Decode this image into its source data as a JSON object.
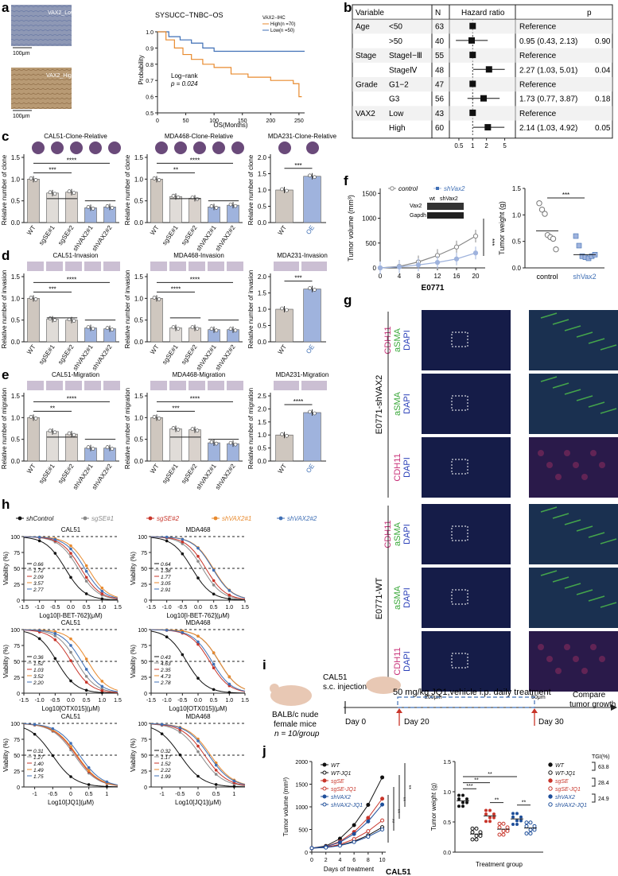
{
  "panel_letters": {
    "a": "a",
    "b": "b",
    "c": "c",
    "d": "d",
    "e": "e",
    "f": "f",
    "g": "g",
    "h": "h",
    "i": "i",
    "j": "j"
  },
  "colors": {
    "blue": "#3f6fb5",
    "orange": "#e88a2e",
    "gray": "#b8b0a8",
    "lightblue": "#9fb3dd",
    "purple": "#7a4f8a",
    "black": "#111111",
    "red": "#c8352a",
    "ihc_low": "#8e98b5",
    "ihc_high": "#b89a74",
    "dark_tissue": "#151c48"
  },
  "a": {
    "ihc_low_label": "VAX2_Low",
    "ihc_high_label": "VAX2_High",
    "scale": "100μm",
    "title": "SYSUCC−TNBC−OS",
    "ylabel": "Probability",
    "xlabel": "OS(Months)",
    "legend_title": "VAX2−IHC",
    "legend_high": "High(n =70)",
    "legend_low": "Low(n =50)",
    "logrank": "Log−rank",
    "pvalue": "p = 0.024",
    "yticks": [
      "0.5",
      "0.6",
      "0.7",
      "0.8",
      "0.9",
      "1.0"
    ],
    "xticks": [
      "0",
      "50",
      "100",
      "150",
      "200",
      "250"
    ]
  },
  "b": {
    "headers": {
      "variable": "Variable",
      "n": "N",
      "hr": "Hazard ratio",
      "p": "p"
    },
    "rows": [
      {
        "variable": "Age",
        "level": "<50",
        "n": "63",
        "text": "Reference",
        "p": ""
      },
      {
        "variable": "",
        "level": ">50",
        "n": "40",
        "text": "0.95 (0.43, 2.13)",
        "p": "0.90"
      },
      {
        "variable": "Stage",
        "level": "StageⅠ−Ⅲ",
        "n": "55",
        "text": "Reference",
        "p": ""
      },
      {
        "variable": "",
        "level": "StageⅣ",
        "n": "48",
        "text": "2.27 (1.03, 5.01)",
        "p": "0.04"
      },
      {
        "variable": "Grade",
        "level": "G1−2",
        "n": "47",
        "text": "Reference",
        "p": ""
      },
      {
        "variable": "",
        "level": "G3",
        "n": "56",
        "text": "1.73 (0.77, 3.87)",
        "p": "0.18"
      },
      {
        "variable": "VAX2",
        "level": "Low",
        "n": "43",
        "text": "Reference",
        "p": ""
      },
      {
        "variable": "",
        "level": "High",
        "n": "60",
        "text": "2.14 (1.03, 4.92)",
        "p": "0.05"
      }
    ],
    "xticks": [
      "0.5",
      "1",
      "2",
      "5"
    ]
  },
  "bars": {
    "cats5": [
      "WT",
      "sgSE#1",
      "sgSE#2",
      "shVAX2#1",
      "shVAX2#2"
    ],
    "cats2": [
      "WT",
      "OE"
    ],
    "c": {
      "ylabel": "Relative number of clone",
      "titles": [
        "CAL51-Clone-Relative",
        "MDA468-Clone-Relative",
        "MDA231-Clone-Relative"
      ],
      "v1": [
        1.0,
        0.68,
        0.7,
        0.34,
        0.36
      ],
      "v2": [
        1.0,
        0.6,
        0.56,
        0.36,
        0.4
      ],
      "v3": [
        1.0,
        1.42
      ],
      "sig1": [
        "***",
        "****"
      ],
      "sig2": [
        "**",
        "****"
      ],
      "sig3": [
        "***"
      ]
    },
    "d": {
      "ylabel": "Relative number of invasion",
      "titles": [
        "CAL51-Invasion",
        "MDA468-Invasion",
        "MDA231-Invasion"
      ],
      "v1": [
        1.0,
        0.52,
        0.5,
        0.32,
        0.3
      ],
      "v2": [
        1.0,
        0.32,
        0.32,
        0.28,
        0.28
      ],
      "v3": [
        1.0,
        1.62
      ],
      "sig1": [
        "***",
        "****"
      ],
      "sig2": [
        "****",
        "****"
      ],
      "sig3": [
        "***"
      ]
    },
    "e": {
      "ylabel": "Relative number of migration",
      "titles": [
        "CAL51-Migration",
        "MDA468-Migration",
        "MDA231-Migration"
      ],
      "v1": [
        1.0,
        0.68,
        0.62,
        0.3,
        0.3
      ],
      "v2": [
        1.0,
        0.74,
        0.72,
        0.42,
        0.4
      ],
      "v3": [
        1.0,
        1.86
      ],
      "sig1": [
        "**",
        "****"
      ],
      "sig2": [
        "***",
        "****"
      ],
      "sig3": [
        "****"
      ]
    }
  },
  "f": {
    "legend_control": "control",
    "legend_shvax2": "shVax2",
    "wb_wt": "wt",
    "wb_sh": "shVax2",
    "wb_vax2": "Vax2",
    "wb_gapdh": "Gapdh",
    "ylabel": "Tumor volume (mm³)",
    "xlabel": "E0771",
    "xticks": [
      "0",
      "4",
      "8",
      "12",
      "16",
      "20"
    ],
    "yticks": [
      "0",
      "500",
      "1000",
      "1500"
    ],
    "sig": "***",
    "ylabel2": "Tumor weight (g)",
    "yticks2": [
      "0.0",
      "0.5",
      "1.0",
      "1.5"
    ],
    "cats": [
      "control",
      "shVax2"
    ],
    "sig2": "***",
    "control_vol": [
      0,
      30,
      120,
      250,
      420,
      640,
      960
    ],
    "sh_vol": [
      0,
      20,
      60,
      110,
      180,
      300,
      500
    ],
    "control_w": [
      1.22,
      1.1,
      1.02,
      0.62,
      0.58,
      0.55,
      0.35
    ],
    "sh_w": [
      0.6,
      0.42,
      0.22,
      0.2,
      0.18,
      0.22,
      0.25
    ]
  },
  "g": {
    "group1": "E0771-shVAX2",
    "group2": "E0771-WT",
    "rows": [
      {
        "l1": "CDH11",
        "l2": "aSMA",
        "l3": "DAPI"
      },
      {
        "l1": "aSMA",
        "l2": "DAPI",
        "l3": ""
      },
      {
        "l1": "CDH11",
        "l2": "DAPI",
        "l3": ""
      },
      {
        "l1": "CDH11",
        "l2": "aSMA",
        "l3": "DAPI"
      },
      {
        "l1": "aSMA",
        "l2": "DAPI",
        "l3": ""
      },
      {
        "l1": "CDH11",
        "l2": "DAPI",
        "l3": ""
      }
    ],
    "scale1": "200μm",
    "scale2": "50μm"
  },
  "h": {
    "legend": [
      "shControl",
      "sgSE#1",
      "sgSE#2",
      "shVAX2#1",
      "shVAX2#2"
    ],
    "ylabel": "Viability (%)",
    "yticks": [
      "0",
      "25",
      "50",
      "75",
      "100"
    ],
    "xticks": [
      "-1.5",
      "-1.0",
      "-0.5",
      "0.0",
      "0.5",
      "1.0",
      "1.5"
    ],
    "xticks3": [
      "-1",
      "-0.5",
      "0",
      "0.5",
      "1"
    ],
    "plots": [
      {
        "title": "CAL51",
        "xlabel": "Log10[I-BET-762](μM)",
        "ic50": [
          "0.66",
          "1.72",
          "2.09",
          "3.57",
          "2.77"
        ]
      },
      {
        "title": "MDA468",
        "xlabel": "Log10[I-BET-762](μM)",
        "ic50": [
          "0.64",
          "1.38",
          "1.77",
          "3.05",
          "2.91"
        ]
      },
      {
        "title": "CAL51",
        "xlabel": "Log10[OTX015](μM)",
        "ic50": [
          "0.36",
          "1.52",
          "1.03",
          "3.52",
          "2.20"
        ]
      },
      {
        "title": "MDA468",
        "xlabel": "Log10[OTX015](μM)",
        "ic50": [
          "0.43",
          "4.63",
          "2.35",
          "4.73",
          "2.78"
        ]
      },
      {
        "title": "CAL51",
        "xlabel": "Log10[JQ1](μM)",
        "ic50": [
          "0.31",
          "1.27",
          "1.40",
          "1.49",
          "1.75"
        ]
      },
      {
        "title": "MDA468",
        "xlabel": "Log10[JQ1](μM)",
        "ic50": [
          "0.32",
          "1.17",
          "1.52",
          "2.22",
          "1.99"
        ]
      }
    ]
  },
  "i": {
    "mouse": "BALB/c nude",
    "mouse2": "female mice",
    "n": "n = 10/group",
    "cell": "CAL51",
    "inj": "s.c. injection",
    "treat": "50 mg/kg JQ1,vehicle i.p. daily treatment",
    "day0": "Day 0",
    "day20": "Day 20",
    "day30": "Day 30",
    "compare1": "Compare",
    "compare2": "tumor growth"
  },
  "j": {
    "legend": [
      "WT",
      "WT-JQ1",
      "sgSE",
      "sgSE-JQ1",
      "shVAX2",
      "shVAX2-JQ1"
    ],
    "ylabel": "Tumor volume (mm³)",
    "xlabel": "Days of treatment",
    "cell": "CAL51",
    "xticks": [
      "0",
      "2",
      "4",
      "6",
      "8",
      "10"
    ],
    "yticks": [
      "0",
      "500",
      "1000",
      "1500",
      "2000"
    ],
    "ylabel2": "Tumor weight (g)",
    "xlabel2": "Treatment group",
    "yticks2": [
      "0.0",
      "0.5",
      "1.0",
      "1.5"
    ],
    "tgi_title": "TGI(%)",
    "tgi": [
      "63.8",
      "28.4",
      "24.9"
    ],
    "sig_vol": [
      "**",
      "**",
      "**",
      "**"
    ],
    "sig_w": [
      "***",
      "**",
      "**",
      "**",
      "**"
    ]
  }
}
